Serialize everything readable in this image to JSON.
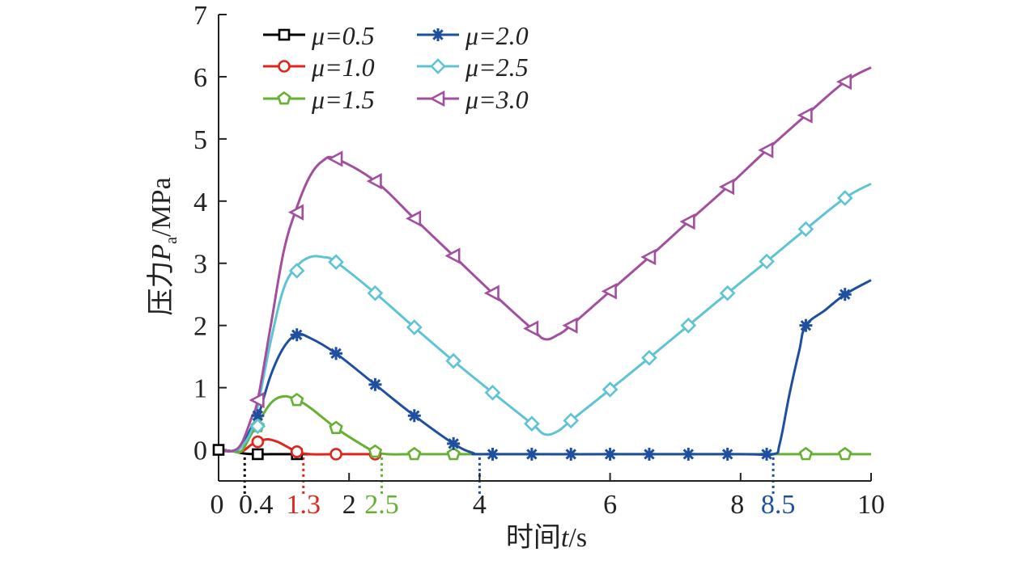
{
  "chart_data": {
    "type": "line",
    "title": "",
    "xlabel": {
      "prefix": "时间",
      "var": "t",
      "unit": "/s"
    },
    "ylabel": {
      "prefix": "压力",
      "var": "P",
      "sub": "a",
      "unit": "/MPa"
    },
    "xlim": [
      0,
      10
    ],
    "ylim": [
      -0.5,
      7
    ],
    "x_ticks": [
      {
        "value": 0,
        "label": "0",
        "color": "#222222"
      },
      {
        "value": 0.4,
        "label": "0.4",
        "color": "#222222"
      },
      {
        "value": 1.3,
        "label": "1.3",
        "color": "#e0261c"
      },
      {
        "value": 2,
        "label": "2",
        "color": "#222222"
      },
      {
        "value": 2.5,
        "label": "2.5",
        "color": "#66b032"
      },
      {
        "value": 4,
        "label": "4",
        "color": "#222222"
      },
      {
        "value": 6,
        "label": "6",
        "color": "#222222"
      },
      {
        "value": 8,
        "label": "8",
        "color": "#222222"
      },
      {
        "value": 8.5,
        "label": "8.5",
        "color": "#1f4f9f"
      },
      {
        "value": 10,
        "label": "10",
        "color": "#222222"
      }
    ],
    "y_ticks": [
      "0",
      "1",
      "2",
      "3",
      "4",
      "5",
      "6",
      "7"
    ],
    "dotted_markers": [
      {
        "x": 0.4,
        "color": "#000000"
      },
      {
        "x": 1.3,
        "color": "#e0261c"
      },
      {
        "x": 2.5,
        "color": "#66b032"
      },
      {
        "x": 4.0,
        "color": "#1f4f9f"
      },
      {
        "x": 8.5,
        "color": "#1f4f9f"
      }
    ],
    "legend_position": "top-left",
    "series": [
      {
        "name": "μ=0.5",
        "color": "#000000",
        "marker": "square",
        "x": [
          0,
          0.2,
          0.4,
          0.6,
          0.8,
          1.0,
          1.2,
          1.4
        ],
        "y": [
          0,
          -0.02,
          -0.06,
          -0.07,
          -0.07,
          -0.07,
          -0.07,
          -0.07
        ],
        "markers": [
          [
            0,
            0
          ],
          [
            0.6,
            -0.07
          ],
          [
            1.2,
            -0.07
          ]
        ]
      },
      {
        "name": "μ=1.0",
        "color": "#e0261c",
        "marker": "circle",
        "x": [
          0,
          0.2,
          0.35,
          0.5,
          0.6,
          0.75,
          0.9,
          1.05,
          1.2,
          1.4,
          1.8,
          2.2,
          2.4
        ],
        "y": [
          0,
          -0.02,
          -0.03,
          0.08,
          0.13,
          0.17,
          0.13,
          0.05,
          -0.03,
          -0.07,
          -0.07,
          -0.07,
          -0.07
        ],
        "markers": [
          [
            0.6,
            0.13
          ],
          [
            1.2,
            -0.03
          ],
          [
            1.8,
            -0.07
          ],
          [
            2.4,
            -0.07
          ]
        ]
      },
      {
        "name": "μ=1.5",
        "color": "#66b032",
        "marker": "pentagon",
        "x": [
          0,
          0.2,
          0.35,
          0.5,
          0.6,
          0.8,
          1.0,
          1.2,
          1.4,
          1.8,
          2.2,
          2.4,
          2.6,
          3.0,
          3.6,
          4.0,
          6.0,
          8.0,
          9.0,
          9.6,
          10.0
        ],
        "y": [
          0,
          -0.02,
          -0.02,
          0.25,
          0.42,
          0.75,
          0.86,
          0.8,
          0.68,
          0.35,
          0.08,
          -0.03,
          -0.07,
          -0.07,
          -0.07,
          -0.07,
          -0.07,
          -0.07,
          -0.07,
          -0.07,
          -0.07
        ],
        "markers": [
          [
            0.6,
            0.38
          ],
          [
            1.2,
            0.8
          ],
          [
            1.8,
            0.35
          ],
          [
            2.4,
            -0.03
          ],
          [
            3.0,
            -0.07
          ],
          [
            3.6,
            -0.07
          ],
          [
            9.0,
            -0.07
          ],
          [
            9.6,
            -0.07
          ]
        ]
      },
      {
        "name": "μ=2.0",
        "color": "#1f4f9f",
        "marker": "asterisk",
        "x": [
          0,
          0.2,
          0.35,
          0.5,
          0.6,
          0.8,
          1.0,
          1.2,
          1.4,
          1.8,
          2.4,
          3.0,
          3.6,
          3.9,
          4.1,
          6.0,
          8.0,
          8.5,
          8.6,
          8.75,
          8.9,
          9.0,
          9.3,
          9.6,
          10.0
        ],
        "y": [
          0,
          -0.02,
          0.05,
          0.35,
          0.52,
          1.2,
          1.65,
          1.85,
          1.8,
          1.55,
          1.05,
          0.55,
          0.1,
          -0.05,
          -0.07,
          -0.07,
          -0.07,
          -0.07,
          0.1,
          0.9,
          1.6,
          2.0,
          2.25,
          2.5,
          2.73
        ],
        "markers": [
          [
            0.6,
            0.55
          ],
          [
            1.2,
            1.85
          ],
          [
            1.8,
            1.55
          ],
          [
            2.4,
            1.05
          ],
          [
            3.0,
            0.55
          ],
          [
            3.6,
            0.1
          ],
          [
            4.2,
            -0.07
          ],
          [
            4.8,
            -0.07
          ],
          [
            5.4,
            -0.07
          ],
          [
            6.0,
            -0.07
          ],
          [
            6.6,
            -0.07
          ],
          [
            7.2,
            -0.07
          ],
          [
            7.8,
            -0.07
          ],
          [
            8.4,
            -0.07
          ],
          [
            9.0,
            2.0
          ],
          [
            9.6,
            2.5
          ]
        ]
      },
      {
        "name": "μ=2.5",
        "color": "#5ec4d4",
        "marker": "diamond",
        "x": [
          0,
          0.2,
          0.35,
          0.5,
          0.6,
          0.8,
          1.0,
          1.2,
          1.4,
          1.6,
          1.8,
          2.4,
          3.0,
          3.6,
          4.2,
          4.8,
          5.0,
          5.2,
          5.4,
          6.0,
          6.6,
          7.2,
          7.8,
          8.4,
          9.0,
          9.6,
          10.0
        ],
        "y": [
          0,
          -0.02,
          0.05,
          0.3,
          0.7,
          1.75,
          2.6,
          2.95,
          3.1,
          3.1,
          3.02,
          2.52,
          1.97,
          1.43,
          0.92,
          0.42,
          0.25,
          0.3,
          0.47,
          0.97,
          1.48,
          2.0,
          2.52,
          3.03,
          3.55,
          4.05,
          4.28
        ],
        "markers": [
          [
            0.6,
            0.38
          ],
          [
            1.2,
            2.88
          ],
          [
            1.8,
            3.02
          ],
          [
            2.4,
            2.52
          ],
          [
            3.0,
            1.97
          ],
          [
            3.6,
            1.43
          ],
          [
            4.2,
            0.92
          ],
          [
            4.8,
            0.42
          ],
          [
            5.4,
            0.47
          ],
          [
            6.0,
            0.97
          ],
          [
            6.6,
            1.48
          ],
          [
            7.2,
            2.0
          ],
          [
            7.8,
            2.52
          ],
          [
            8.4,
            3.03
          ],
          [
            9.0,
            3.55
          ],
          [
            9.6,
            4.05
          ]
        ]
      },
      {
        "name": "μ=3.0",
        "color": "#a24f9f",
        "marker": "triangle-left",
        "x": [
          0,
          0.2,
          0.35,
          0.5,
          0.6,
          0.8,
          1.0,
          1.2,
          1.4,
          1.6,
          1.8,
          2.4,
          3.0,
          3.6,
          4.2,
          4.8,
          5.0,
          5.2,
          5.4,
          6.0,
          6.6,
          7.2,
          7.8,
          8.4,
          9.0,
          9.6,
          10.0
        ],
        "y": [
          0,
          -0.02,
          0.1,
          0.5,
          0.8,
          2.0,
          3.2,
          3.9,
          4.4,
          4.65,
          4.68,
          4.32,
          3.72,
          3.12,
          2.52,
          1.95,
          1.78,
          1.85,
          2.0,
          2.55,
          3.1,
          3.67,
          4.23,
          4.82,
          5.38,
          5.92,
          6.15
        ],
        "markers": [
          [
            0.6,
            0.8
          ],
          [
            1.2,
            3.82
          ],
          [
            1.8,
            4.68
          ],
          [
            2.4,
            4.32
          ],
          [
            3.0,
            3.72
          ],
          [
            3.6,
            3.12
          ],
          [
            4.2,
            2.52
          ],
          [
            4.8,
            1.95
          ],
          [
            5.4,
            2.0
          ],
          [
            6.0,
            2.55
          ],
          [
            6.6,
            3.1
          ],
          [
            7.2,
            3.67
          ],
          [
            7.8,
            4.23
          ],
          [
            8.4,
            4.82
          ],
          [
            9.0,
            5.38
          ],
          [
            9.6,
            5.92
          ]
        ]
      }
    ]
  }
}
